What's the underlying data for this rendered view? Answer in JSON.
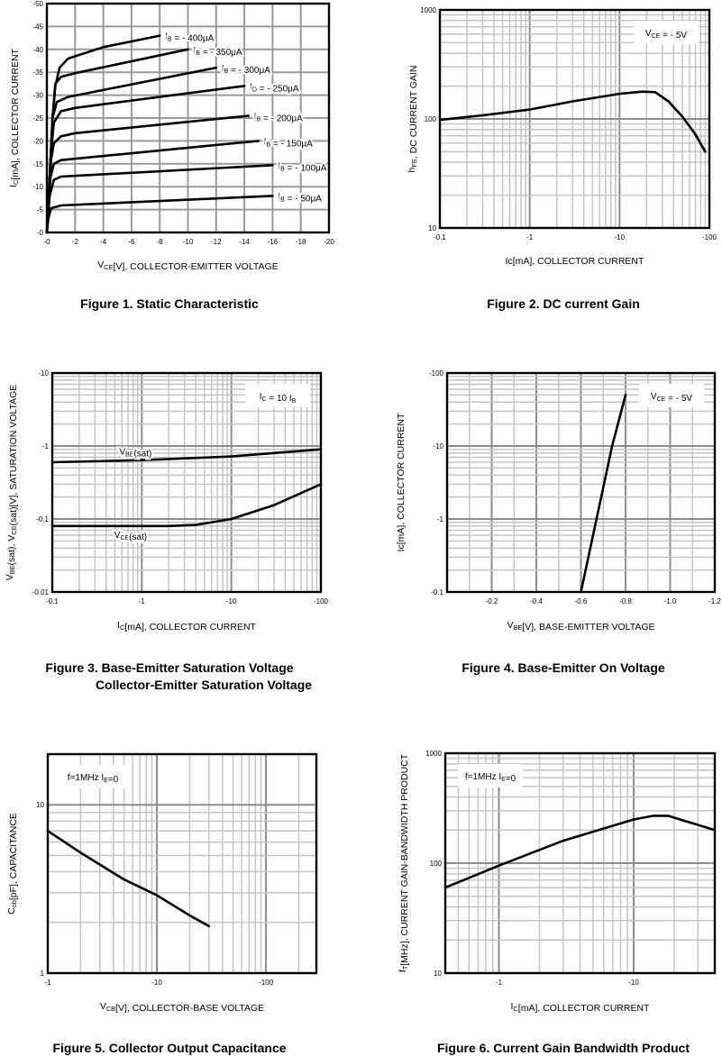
{
  "chart_data": [
    {
      "type": "line",
      "caption": [
        "Figure 1. Static Characteristic"
      ],
      "xscale": "linear",
      "yscale": "linear",
      "xlim": [
        0,
        20
      ],
      "ylim": [
        0,
        50
      ],
      "xgrid": {
        "minor": 2,
        "major": 2
      },
      "ygrid": {
        "minor": 5,
        "major": 5
      },
      "xticks": [
        [
          0,
          "-0"
        ],
        [
          2,
          "-2"
        ],
        [
          4,
          "-4"
        ],
        [
          6,
          "-6"
        ],
        [
          8,
          "-8"
        ],
        [
          10,
          "-10"
        ],
        [
          12,
          "-12"
        ],
        [
          14,
          "-14"
        ],
        [
          16,
          "-16"
        ],
        [
          18,
          "-18"
        ],
        [
          20,
          "-20"
        ]
      ],
      "yticks": [
        [
          0,
          "-0"
        ],
        [
          5,
          "-5"
        ],
        [
          10,
          "-10"
        ],
        [
          15,
          "-15"
        ],
        [
          20,
          "-20"
        ],
        [
          25,
          "-25"
        ],
        [
          30,
          "-30"
        ],
        [
          35,
          "-35"
        ],
        [
          40,
          "-40"
        ],
        [
          45,
          "-45"
        ],
        [
          50,
          "-50"
        ]
      ],
      "xlabel": [
        {
          "t": "V"
        },
        {
          "t": "CE",
          "sub": true
        },
        {
          "t": "[V], COLLECTOR-EMITTER VOLTAGE"
        }
      ],
      "ylabel": [
        {
          "t": "I"
        },
        {
          "t": "C",
          "sub": true
        },
        {
          "t": "[mA], COLLECTOR CURRENT"
        }
      ],
      "series": [
        {
          "name": "IB = -400μA",
          "label": [
            {
              "t": "I"
            },
            {
              "t": "B",
              "sub": true
            },
            {
              "t": " = - 400μA"
            }
          ],
          "points": [
            [
              0,
              0
            ],
            [
              0.2,
              12
            ],
            [
              0.4,
              25
            ],
            [
              0.6,
              32
            ],
            [
              0.9,
              36
            ],
            [
              1.5,
              38
            ],
            [
              4,
              40.5
            ],
            [
              8,
              43
            ]
          ]
        },
        {
          "name": "IB = -350μA",
          "label": [
            {
              "t": "I"
            },
            {
              "t": "B",
              "sub": true
            },
            {
              "t": " = - 350μA"
            }
          ],
          "points": [
            [
              0,
              0
            ],
            [
              0.2,
              12
            ],
            [
              0.4,
              25
            ],
            [
              0.6,
              32.5
            ],
            [
              1,
              34
            ],
            [
              2,
              34.8
            ],
            [
              10,
              40
            ]
          ]
        },
        {
          "name": "IB = -300μA",
          "label": [
            {
              "t": "I"
            },
            {
              "t": "B",
              "sub": true
            },
            {
              "t": " = - 300μA"
            }
          ],
          "points": [
            [
              0,
              0
            ],
            [
              0.25,
              15
            ],
            [
              0.4,
              25
            ],
            [
              0.7,
              28.5
            ],
            [
              1.5,
              29.6
            ],
            [
              12,
              36
            ]
          ]
        },
        {
          "name": "ID = -250μA",
          "label": [
            {
              "t": "I"
            },
            {
              "t": "D",
              "sub": true
            },
            {
              "t": " = - 250μA"
            }
          ],
          "points": [
            [
              0,
              0
            ],
            [
              0.3,
              18
            ],
            [
              0.5,
              24
            ],
            [
              1,
              26.5
            ],
            [
              2,
              27.2
            ],
            [
              14,
              32
            ]
          ]
        },
        {
          "name": "IB = -200μA",
          "label": [
            {
              "t": "I"
            },
            {
              "t": "B",
              "sub": true
            },
            {
              "t": " = - 200μA"
            }
          ],
          "points": [
            [
              0,
              0
            ],
            [
              0.3,
              16
            ],
            [
              0.5,
              19.5
            ],
            [
              1,
              21
            ],
            [
              2,
              21.7
            ],
            [
              14.3,
              25.5
            ]
          ]
        },
        {
          "name": "IB = -150μA",
          "label": [
            {
              "t": "I"
            },
            {
              "t": "B",
              "sub": true
            },
            {
              "t": " = - 150μA"
            }
          ],
          "points": [
            [
              0,
              0
            ],
            [
              0.25,
              12
            ],
            [
              0.5,
              15
            ],
            [
              1,
              15.8
            ],
            [
              15,
              20
            ]
          ]
        },
        {
          "name": "IB = -100μA",
          "label": [
            {
              "t": "I"
            },
            {
              "t": "B",
              "sub": true
            },
            {
              "t": " = - 100μA"
            }
          ],
          "points": [
            [
              0,
              0
            ],
            [
              0.2,
              8
            ],
            [
              0.5,
              11.5
            ],
            [
              1,
              12.2
            ],
            [
              16,
              14.7
            ]
          ]
        },
        {
          "name": "IB = -50μA",
          "label": [
            {
              "t": "I"
            },
            {
              "t": "B",
              "sub": true
            },
            {
              "t": " = - 50μA"
            }
          ],
          "points": [
            [
              0,
              0
            ],
            [
              0.1,
              3
            ],
            [
              0.3,
              5.3
            ],
            [
              1,
              5.9
            ],
            [
              16,
              8
            ]
          ]
        }
      ]
    },
    {
      "type": "line",
      "caption": [
        "Figure 2. DC current Gain"
      ],
      "xscale": "log",
      "yscale": "log",
      "xlim": [
        0.1,
        100
      ],
      "ylim": [
        10,
        1000
      ],
      "xticks": [
        [
          0.1,
          "-0.1"
        ],
        [
          1,
          "-1"
        ],
        [
          10,
          "-10"
        ],
        [
          100,
          "-100"
        ]
      ],
      "yticks": [
        [
          10,
          "10"
        ],
        [
          100,
          "100"
        ],
        [
          1000,
          "1000"
        ]
      ],
      "xlabel": [
        {
          "t": "Ic[mA], COLLECTOR CURRENT"
        }
      ],
      "ylabel": [
        {
          "t": "h"
        },
        {
          "t": "FE",
          "sub": true
        },
        {
          "t": ", DC CURRENT GAIN"
        }
      ],
      "legend": {
        "text": [
          {
            "t": "V"
          },
          {
            "t": "CE",
            "sub": true
          },
          {
            "t": " = - 5V"
          }
        ],
        "placement": "top-right"
      },
      "series": [
        {
          "name": "hFE",
          "points": [
            [
              0.1,
              98
            ],
            [
              0.3,
              108
            ],
            [
              1,
              122
            ],
            [
              3,
              145
            ],
            [
              10,
              170
            ],
            [
              18,
              178
            ],
            [
              25,
              176
            ],
            [
              35,
              145
            ],
            [
              50,
              105
            ],
            [
              70,
              72
            ],
            [
              90,
              50
            ]
          ]
        }
      ]
    },
    {
      "type": "line",
      "caption": [
        "Figure 3. Base-Emitter Saturation Voltage",
        "Collector-Emitter Saturation Voltage"
      ],
      "xscale": "log",
      "yscale": "log",
      "xlim": [
        0.1,
        100
      ],
      "ylim": [
        0.01,
        10
      ],
      "xticks": [
        [
          0.1,
          "-0.1"
        ],
        [
          1,
          "-1"
        ],
        [
          10,
          "-10"
        ],
        [
          100,
          "-100"
        ]
      ],
      "yticks": [
        [
          0.01,
          "-0.01"
        ],
        [
          0.1,
          "-0.1"
        ],
        [
          1,
          "-1"
        ],
        [
          10,
          "-10"
        ]
      ],
      "xlabel": [
        {
          "t": "I"
        },
        {
          "t": "C",
          "sub": true
        },
        {
          "t": "[mA], COLLECTOR CURRENT"
        }
      ],
      "ylabel": [
        {
          "t": "V"
        },
        {
          "t": "BE",
          "sub": true
        },
        {
          "t": "(sat), V"
        },
        {
          "t": "CE",
          "sub": true
        },
        {
          "t": "(sat)[V], SATURATION VOLTAGE"
        }
      ],
      "legend": {
        "text": [
          {
            "t": "I"
          },
          {
            "t": "C",
            "sub": true
          },
          {
            "t": " = 10 I"
          },
          {
            "t": "B",
            "sub": true
          }
        ],
        "placement": "top-right"
      },
      "series": [
        {
          "name": "VBE(sat)",
          "label": [
            {
              "t": "V"
            },
            {
              "t": "BE",
              "sub": true
            },
            {
              "t": "(sat)"
            }
          ],
          "label_at": [
            0.85,
            0.85
          ],
          "points": [
            [
              0.1,
              0.6
            ],
            [
              1,
              0.64
            ],
            [
              10,
              0.72
            ],
            [
              100,
              0.9
            ]
          ]
        },
        {
          "name": "VCE(sat)",
          "label": [
            {
              "t": "V"
            },
            {
              "t": "CE",
              "sub": true
            },
            {
              "t": "(sat)"
            }
          ],
          "label_at": [
            0.75,
            0.062
          ],
          "points": [
            [
              0.1,
              0.08
            ],
            [
              2,
              0.08
            ],
            [
              4,
              0.083
            ],
            [
              10,
              0.1
            ],
            [
              30,
              0.155
            ],
            [
              100,
              0.3
            ]
          ]
        }
      ]
    },
    {
      "type": "line",
      "caption": [
        "Figure 4. Base-Emitter On Voltage"
      ],
      "xscale": "linear",
      "yscale": "log",
      "xlim": [
        0,
        1.2
      ],
      "ylim": [
        0.1,
        100
      ],
      "xgrid": {
        "minor": 0.1,
        "major": 0.2
      },
      "xticks": [
        [
          0.2,
          "-0.2"
        ],
        [
          0.4,
          "-0.4"
        ],
        [
          0.6,
          "-0.6"
        ],
        [
          0.8,
          "-0.8"
        ],
        [
          1.0,
          "-1.0"
        ],
        [
          1.2,
          "-1.2"
        ]
      ],
      "yticks": [
        [
          0.1,
          "-0.1"
        ],
        [
          1,
          "-1"
        ],
        [
          10,
          "-10"
        ],
        [
          100,
          "-100"
        ]
      ],
      "xlabel": [
        {
          "t": "V"
        },
        {
          "t": "BE",
          "sub": true
        },
        {
          "t": "[V], BASE-EMITTER VOLTAGE"
        }
      ],
      "ylabel": [
        {
          "t": "Ic[mA], COLLECTOR CURRENT"
        }
      ],
      "legend": {
        "text": [
          {
            "t": "V"
          },
          {
            "t": "CE",
            "sub": true
          },
          {
            "t": " = - 5V"
          }
        ],
        "placement": "top-right"
      },
      "series": [
        {
          "name": "IC vs VBE",
          "points": [
            [
              0.6,
              0.1
            ],
            [
              0.67,
              1
            ],
            [
              0.74,
              10
            ],
            [
              0.8,
              50
            ]
          ]
        }
      ]
    },
    {
      "type": "line",
      "caption": [
        "Figure 5. Collector Output Capacitance"
      ],
      "xscale": "log",
      "yscale": "log",
      "xlim": [
        1,
        290
      ],
      "ylim": [
        1,
        20
      ],
      "xticks": [
        [
          1,
          "-1"
        ],
        [
          10,
          "-10"
        ],
        [
          100,
          "-100"
        ]
      ],
      "yticks": [
        [
          1,
          "1"
        ],
        [
          10,
          "10"
        ]
      ],
      "xlabel": [
        {
          "t": "V"
        },
        {
          "t": "CB",
          "sub": true
        },
        {
          "t": "[V], COLLECTOR-BASE VOLTAGE"
        }
      ],
      "ylabel": [
        {
          "t": "C"
        },
        {
          "t": "ob",
          "sub": true
        },
        {
          "t": "[pF], CAPACITANCE"
        }
      ],
      "legend": {
        "text": [
          {
            "t": "f=1MHz I"
          },
          {
            "t": "E",
            "sub": true
          },
          {
            "t": "=0"
          }
        ],
        "placement": "top-left"
      },
      "series": [
        {
          "name": "Cob",
          "points": [
            [
              1,
              7
            ],
            [
              2,
              5.2
            ],
            [
              5,
              3.6
            ],
            [
              10,
              2.9
            ],
            [
              20,
              2.2
            ],
            [
              30,
              1.9
            ]
          ]
        }
      ]
    },
    {
      "type": "line",
      "caption": [
        "Figure 6. Current Gain Bandwidth Product"
      ],
      "xscale": "log",
      "yscale": "log",
      "xlim": [
        0.4,
        40
      ],
      "ylim": [
        10,
        1000
      ],
      "xticks": [
        [
          1,
          "-1"
        ],
        [
          10,
          "-10"
        ]
      ],
      "yticks": [
        [
          10,
          "10"
        ],
        [
          100,
          "100"
        ],
        [
          1000,
          "1000"
        ]
      ],
      "xlabel": [
        {
          "t": "I"
        },
        {
          "t": "C",
          "sub": true
        },
        {
          "t": "[mA], COLLECTOR CURRENT"
        }
      ],
      "ylabel": [
        {
          "t": "f"
        },
        {
          "t": "T",
          "sub": true
        },
        {
          "t": "[MHz], CURRENT GAIN-BANDWIDTH PRODUCT"
        }
      ],
      "legend": {
        "text": [
          {
            "t": "f=1MHz I"
          },
          {
            "t": "E",
            "sub": true
          },
          {
            "t": "=0"
          }
        ],
        "placement": "top-left"
      },
      "series": [
        {
          "name": "fT",
          "points": [
            [
              0.4,
              60
            ],
            [
              1,
              95
            ],
            [
              3,
              160
            ],
            [
              10,
              250
            ],
            [
              14,
              270
            ],
            [
              18,
              270
            ],
            [
              40,
              200
            ]
          ]
        }
      ]
    }
  ]
}
